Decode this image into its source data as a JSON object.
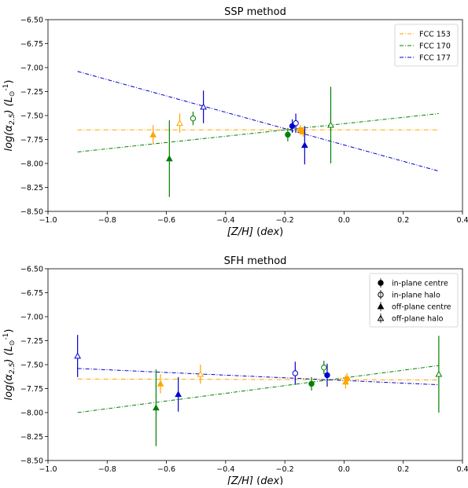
{
  "chart_data": [
    {
      "type": "scatter",
      "title": "SSP method",
      "xlabel": "[Z/H] (dex)",
      "ylabel": "log(α_2.5) (L_⊙^-1)",
      "xlim": [
        -1.0,
        0.4
      ],
      "ylim": [
        -8.5,
        -6.5
      ],
      "invert_y": true,
      "x_ticks": [
        -1.0,
        -0.8,
        -0.6,
        -0.4,
        -0.2,
        0.0,
        0.2,
        0.4
      ],
      "y_ticks": [
        -6.5,
        -6.75,
        -7.0,
        -7.25,
        -7.5,
        -7.75,
        -8.0,
        -8.25,
        -8.5
      ],
      "x_tick_labels": [
        "−1.0",
        "−0.8",
        "−0.6",
        "−0.4",
        "−0.2",
        "0.0",
        "0.2",
        "0.4"
      ],
      "y_tick_labels": [
        "−6.50",
        "−6.75",
        "−7.00",
        "−7.25",
        "−7.50",
        "−7.75",
        "−8.00",
        "−8.25",
        "−8.50"
      ],
      "legend_position": "top-right",
      "legend": [
        "FCC 153",
        "FCC 170",
        "FCC 177"
      ],
      "series": [
        {
          "name": "FCC 153",
          "color": "#ffa500",
          "fit": {
            "x": [
              -0.9,
              0.32
            ],
            "y": [
              -7.65,
              -7.65
            ]
          },
          "points": [
            {
              "x": -0.645,
              "y": -7.7,
              "err": 0.1,
              "marker": "triangle-filled"
            },
            {
              "x": -0.555,
              "y": -7.58,
              "err": 0.1,
              "marker": "triangle-open"
            },
            {
              "x": -0.138,
              "y": -7.67,
              "err": 0.05,
              "marker": "triangle-filled"
            },
            {
              "x": -0.148,
              "y": -7.65,
              "err": 0.05,
              "marker": "circle-filled"
            }
          ]
        },
        {
          "name": "FCC 170",
          "color": "#008000",
          "fit": {
            "x": [
              -0.9,
              0.32
            ],
            "y": [
              -7.88,
              -7.48
            ]
          },
          "points": [
            {
              "x": -0.59,
              "y": -7.95,
              "err": 0.4,
              "marker": "triangle-filled"
            },
            {
              "x": -0.51,
              "y": -7.53,
              "err": 0.07,
              "marker": "circle-open"
            },
            {
              "x": -0.19,
              "y": -7.7,
              "err": 0.07,
              "marker": "circle-filled"
            },
            {
              "x": -0.045,
              "y": -7.6,
              "err": 0.4,
              "marker": "triangle-open"
            }
          ]
        },
        {
          "name": "FCC 177",
          "color": "#0000cd",
          "fit": {
            "x": [
              -0.9,
              0.32
            ],
            "y": [
              -7.04,
              -8.08
            ]
          },
          "points": [
            {
              "x": -0.475,
              "y": -7.41,
              "err": 0.17,
              "marker": "triangle-open"
            },
            {
              "x": -0.175,
              "y": -7.61,
              "err": 0.07,
              "marker": "circle-filled"
            },
            {
              "x": -0.163,
              "y": -7.58,
              "err": 0.1,
              "marker": "circle-open"
            },
            {
              "x": -0.133,
              "y": -7.81,
              "err": 0.2,
              "marker": "triangle-filled"
            }
          ]
        }
      ]
    },
    {
      "type": "scatter",
      "title": "SFH method",
      "xlabel": "[Z/H] (dex)",
      "ylabel": "log(α_2.5) (L_⊙^-1)",
      "xlim": [
        -1.0,
        0.4
      ],
      "ylim": [
        -8.5,
        -6.5
      ],
      "invert_y": true,
      "x_ticks": [
        -1.0,
        -0.8,
        -0.6,
        -0.4,
        -0.2,
        0.0,
        0.2,
        0.4
      ],
      "y_ticks": [
        -6.5,
        -6.75,
        -7.0,
        -7.25,
        -7.5,
        -7.75,
        -8.0,
        -8.25,
        -8.5
      ],
      "x_tick_labels": [
        "−1.0",
        "−0.8",
        "−0.6",
        "−0.4",
        "−0.2",
        "0.0",
        "0.2",
        "0.4"
      ],
      "y_tick_labels": [
        "−6.50",
        "−6.75",
        "−7.00",
        "−7.25",
        "−7.50",
        "−7.75",
        "−8.00",
        "−8.25",
        "−8.50"
      ],
      "legend_position": "top-right",
      "legend": [
        {
          "label": "in-plane centre",
          "marker": "circle-filled"
        },
        {
          "label": "in-plane halo",
          "marker": "circle-open"
        },
        {
          "label": "off-plane centre",
          "marker": "triangle-filled"
        },
        {
          "label": "off-plane halo",
          "marker": "triangle-open"
        }
      ],
      "series": [
        {
          "color": "#ffa500",
          "fit": {
            "x": [
              -0.9,
              0.32
            ],
            "y": [
              -7.65,
              -7.66
            ]
          },
          "points": [
            {
              "x": -0.62,
              "y": -7.7,
              "err": 0.1,
              "marker": "triangle-filled"
            },
            {
              "x": -0.485,
              "y": -7.6,
              "err": 0.1,
              "marker": "triangle-open"
            },
            {
              "x": 0.005,
              "y": -7.68,
              "err": 0.07,
              "marker": "triangle-filled"
            },
            {
              "x": 0.01,
              "y": -7.65,
              "err": 0.06,
              "marker": "circle-filled"
            }
          ]
        },
        {
          "color": "#008000",
          "fit": {
            "x": [
              -0.9,
              0.32
            ],
            "y": [
              -8.0,
              -7.51
            ]
          },
          "points": [
            {
              "x": -0.635,
              "y": -7.95,
              "err": 0.4,
              "marker": "triangle-filled"
            },
            {
              "x": -0.11,
              "y": -7.7,
              "err": 0.07,
              "marker": "circle-filled"
            },
            {
              "x": -0.068,
              "y": -7.53,
              "err": 0.07,
              "marker": "circle-open"
            },
            {
              "x": 0.32,
              "y": -7.6,
              "err": 0.4,
              "marker": "triangle-open"
            }
          ]
        },
        {
          "color": "#0000cd",
          "fit": {
            "x": [
              -0.9,
              0.32
            ],
            "y": [
              -7.54,
              -7.71
            ]
          },
          "points": [
            {
              "x": -0.9,
              "y": -7.41,
              "err": 0.22,
              "marker": "triangle-open"
            },
            {
              "x": -0.56,
              "y": -7.81,
              "err": 0.18,
              "marker": "triangle-filled"
            },
            {
              "x": -0.165,
              "y": -7.59,
              "err": 0.12,
              "marker": "circle-open"
            },
            {
              "x": -0.057,
              "y": -7.61,
              "err": 0.12,
              "marker": "circle-filled"
            }
          ]
        }
      ]
    }
  ]
}
